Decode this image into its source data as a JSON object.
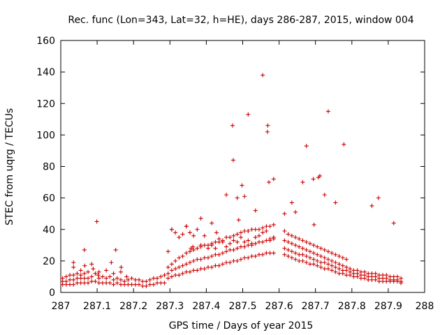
{
  "chart_data": {
    "type": "scatter",
    "title": "Rec. func (Lon=343, Lat=32, h=HE), days 286-287, 2015, window 004",
    "xlabel": "GPS time / Days of year 2015",
    "ylabel": "STEC from uqrg / TECUs",
    "xlim": [
      287,
      288
    ],
    "ylim": [
      0,
      160
    ],
    "xticks": [
      "287",
      "287.1",
      "287.2",
      "287.3",
      "287.4",
      "287.5",
      "287.6",
      "287.7",
      "287.8",
      "287.9",
      "288"
    ],
    "yticks": [
      "0",
      "20",
      "40",
      "60",
      "80",
      "100",
      "120",
      "140",
      "160"
    ],
    "grid": false,
    "legend": "none",
    "marker": "plus",
    "color": "#cc0000",
    "series": [
      {
        "x": [
          287.005,
          287.005,
          287.005,
          287.015,
          287.015,
          287.015,
          287.025,
          287.025,
          287.025,
          287.035,
          287.035,
          287.035,
          287.035,
          287.045,
          287.045,
          287.045,
          287.055,
          287.055,
          287.055,
          287.055,
          287.065,
          287.065,
          287.065,
          287.065,
          287.075,
          287.075,
          287.075,
          287.085,
          287.085,
          287.085,
          287.095,
          287.095,
          287.105,
          287.105,
          287.105,
          287.115,
          287.115,
          287.125,
          287.125,
          287.125,
          287.135,
          287.135,
          287.145,
          287.145,
          287.145,
          287.155,
          287.155,
          287.165,
          287.165,
          287.165,
          287.175,
          287.175,
          287.185,
          287.185,
          287.195,
          287.195,
          287.205,
          287.205,
          287.215,
          287.215,
          287.225,
          287.225,
          287.235,
          287.235,
          287.245,
          287.245,
          287.255,
          287.255,
          287.265,
          287.265,
          287.275,
          287.275,
          287.285,
          287.285,
          287.035,
          287.066,
          287.089,
          287.099,
          287.139,
          287.151,
          287.166,
          287.103,
          287.181
        ],
        "y": [
          5,
          7,
          9,
          5,
          7,
          10,
          5,
          8,
          11,
          5,
          8,
          11,
          19,
          6,
          9,
          12,
          6,
          9,
          11,
          14,
          6,
          9,
          12,
          27,
          6,
          9,
          13,
          7,
          10,
          18,
          7,
          12,
          6,
          9,
          13,
          6,
          10,
          6,
          9,
          14,
          6,
          10,
          5,
          8,
          12,
          6,
          9,
          5,
          8,
          13,
          5,
          7,
          5,
          8,
          5,
          9,
          5,
          8,
          5,
          8,
          4,
          7,
          4,
          7,
          5,
          8,
          5,
          9,
          6,
          9,
          6,
          10,
          6,
          11,
          16,
          17,
          15,
          45,
          19,
          27,
          16,
          11,
          10
        ]
      },
      {
        "x": [
          287.295,
          287.295,
          287.295,
          287.295,
          287.305,
          287.305,
          287.305,
          287.305,
          287.315,
          287.315,
          287.315,
          287.315,
          287.325,
          287.325,
          287.325,
          287.325,
          287.335,
          287.335,
          287.335,
          287.335,
          287.345,
          287.345,
          287.345,
          287.345,
          287.355,
          287.355,
          287.355,
          287.355,
          287.365,
          287.365,
          287.365,
          287.365,
          287.375,
          287.375,
          287.375,
          287.375,
          287.385,
          287.385,
          287.385,
          287.385,
          287.395,
          287.395,
          287.395,
          287.395,
          287.405,
          287.405,
          287.405,
          287.405,
          287.415,
          287.415,
          287.415,
          287.415,
          287.425,
          287.425,
          287.425,
          287.425,
          287.435,
          287.435,
          287.435,
          287.435,
          287.445,
          287.445,
          287.445,
          287.445,
          287.455,
          287.455,
          287.455,
          287.455,
          287.465,
          287.465,
          287.465,
          287.465,
          287.475,
          287.475,
          287.475,
          287.475,
          287.485,
          287.485,
          287.485,
          287.485,
          287.495,
          287.495,
          287.495,
          287.495,
          287.505,
          287.505,
          287.505,
          287.505,
          287.515,
          287.515,
          287.515,
          287.515,
          287.525,
          287.525,
          287.525,
          287.525,
          287.535,
          287.535,
          287.535,
          287.535,
          287.545,
          287.545,
          287.545,
          287.545,
          287.555,
          287.555,
          287.555,
          287.555,
          287.565,
          287.565,
          287.565,
          287.565,
          287.575,
          287.575,
          287.575,
          287.575,
          287.585,
          287.585,
          287.585,
          287.585,
          287.305,
          287.345,
          287.385,
          287.415,
          287.455,
          287.472,
          287.474,
          287.485,
          287.498,
          287.505,
          287.515,
          287.515,
          287.535,
          287.555,
          287.568,
          287.569,
          287.572,
          287.585,
          287.489,
          287.428,
          287.363,
          287.358
        ],
        "y": [
          9,
          12,
          16,
          26,
          10,
          14,
          18,
          40,
          11,
          15,
          20,
          38,
          11,
          16,
          22,
          35,
          12,
          17,
          23,
          37,
          13,
          18,
          25,
          42,
          13,
          19,
          26,
          38,
          14,
          20,
          27,
          36,
          14,
          21,
          28,
          40,
          15,
          21,
          29,
          30,
          15,
          22,
          30,
          36,
          16,
          22,
          30,
          28,
          16,
          23,
          31,
          30,
          17,
          24,
          32,
          28,
          17,
          24,
          32,
          34,
          18,
          25,
          33,
          32,
          19,
          26,
          35,
          29,
          19,
          27,
          35,
          31,
          20,
          27,
          36,
          33,
          20,
          28,
          37,
          32,
          21,
          29,
          38,
          35,
          22,
          29,
          39,
          32,
          22,
          30,
          39,
          33,
          23,
          30,
          40,
          31,
          23,
          31,
          40,
          35,
          24,
          32,
          40,
          36,
          24,
          32,
          41,
          38,
          25,
          33,
          42,
          39,
          25,
          33,
          42,
          34,
          25,
          34,
          43,
          35,
          40,
          42,
          47,
          44,
          62,
          106,
          84,
          60,
          68,
          61,
          113,
          39,
          52,
          138,
          102,
          106,
          70,
          72,
          46,
          38,
          29,
          28
        ]
      },
      {
        "x": [
          287.615,
          287.615,
          287.615,
          287.615,
          287.625,
          287.625,
          287.625,
          287.625,
          287.635,
          287.635,
          287.635,
          287.635,
          287.645,
          287.645,
          287.645,
          287.645,
          287.655,
          287.655,
          287.655,
          287.655,
          287.665,
          287.665,
          287.665,
          287.665,
          287.675,
          287.675,
          287.675,
          287.675,
          287.685,
          287.685,
          287.685,
          287.685,
          287.695,
          287.695,
          287.695,
          287.695,
          287.705,
          287.705,
          287.705,
          287.705,
          287.715,
          287.715,
          287.715,
          287.715,
          287.725,
          287.725,
          287.725,
          287.725,
          287.735,
          287.735,
          287.735,
          287.735,
          287.745,
          287.745,
          287.745,
          287.745,
          287.755,
          287.755,
          287.755,
          287.755,
          287.765,
          287.765,
          287.765,
          287.765,
          287.775,
          287.775,
          287.775,
          287.775,
          287.785,
          287.785,
          287.785,
          287.785,
          287.795,
          287.795,
          287.795,
          287.805,
          287.805,
          287.805,
          287.815,
          287.815,
          287.815,
          287.825,
          287.825,
          287.825,
          287.835,
          287.835,
          287.835,
          287.845,
          287.845,
          287.845,
          287.855,
          287.855,
          287.855,
          287.865,
          287.865,
          287.865,
          287.875,
          287.875,
          287.875,
          287.885,
          287.885,
          287.885,
          287.895,
          287.895,
          287.895,
          287.905,
          287.905,
          287.905,
          287.915,
          287.915,
          287.915,
          287.925,
          287.925,
          287.925,
          287.935,
          287.935,
          287.935,
          287.615,
          287.635,
          287.665,
          287.675,
          287.694,
          287.712,
          287.735,
          287.755,
          287.778,
          287.855,
          287.873,
          287.915,
          287.725,
          287.708,
          287.645,
          287.696
        ],
        "y": [
          24,
          28,
          33,
          39,
          23,
          27,
          32,
          37,
          22,
          26,
          31,
          36,
          21,
          25,
          30,
          35,
          20,
          24,
          29,
          34,
          20,
          24,
          28,
          33,
          19,
          23,
          27,
          32,
          18,
          22,
          26,
          31,
          18,
          21,
          25,
          30,
          17,
          20,
          24,
          29,
          16,
          19,
          23,
          28,
          15,
          19,
          22,
          27,
          15,
          18,
          21,
          26,
          14,
          17,
          20,
          25,
          13,
          16,
          19,
          24,
          12,
          15,
          18,
          23,
          12,
          14,
          17,
          22,
          11,
          14,
          16,
          21,
          11,
          13,
          15,
          10,
          12,
          14,
          10,
          12,
          14,
          9,
          11,
          13,
          9,
          11,
          13,
          8,
          10,
          12,
          8,
          10,
          12,
          8,
          10,
          12,
          7,
          9,
          11,
          7,
          9,
          11,
          7,
          9,
          11,
          7,
          8,
          10,
          7,
          8,
          10,
          7,
          8,
          10,
          6,
          7,
          9,
          50,
          57,
          70,
          93,
          72,
          74,
          115,
          57,
          94,
          55,
          60,
          44,
          62,
          73,
          51,
          43
        ]
      }
    ]
  }
}
